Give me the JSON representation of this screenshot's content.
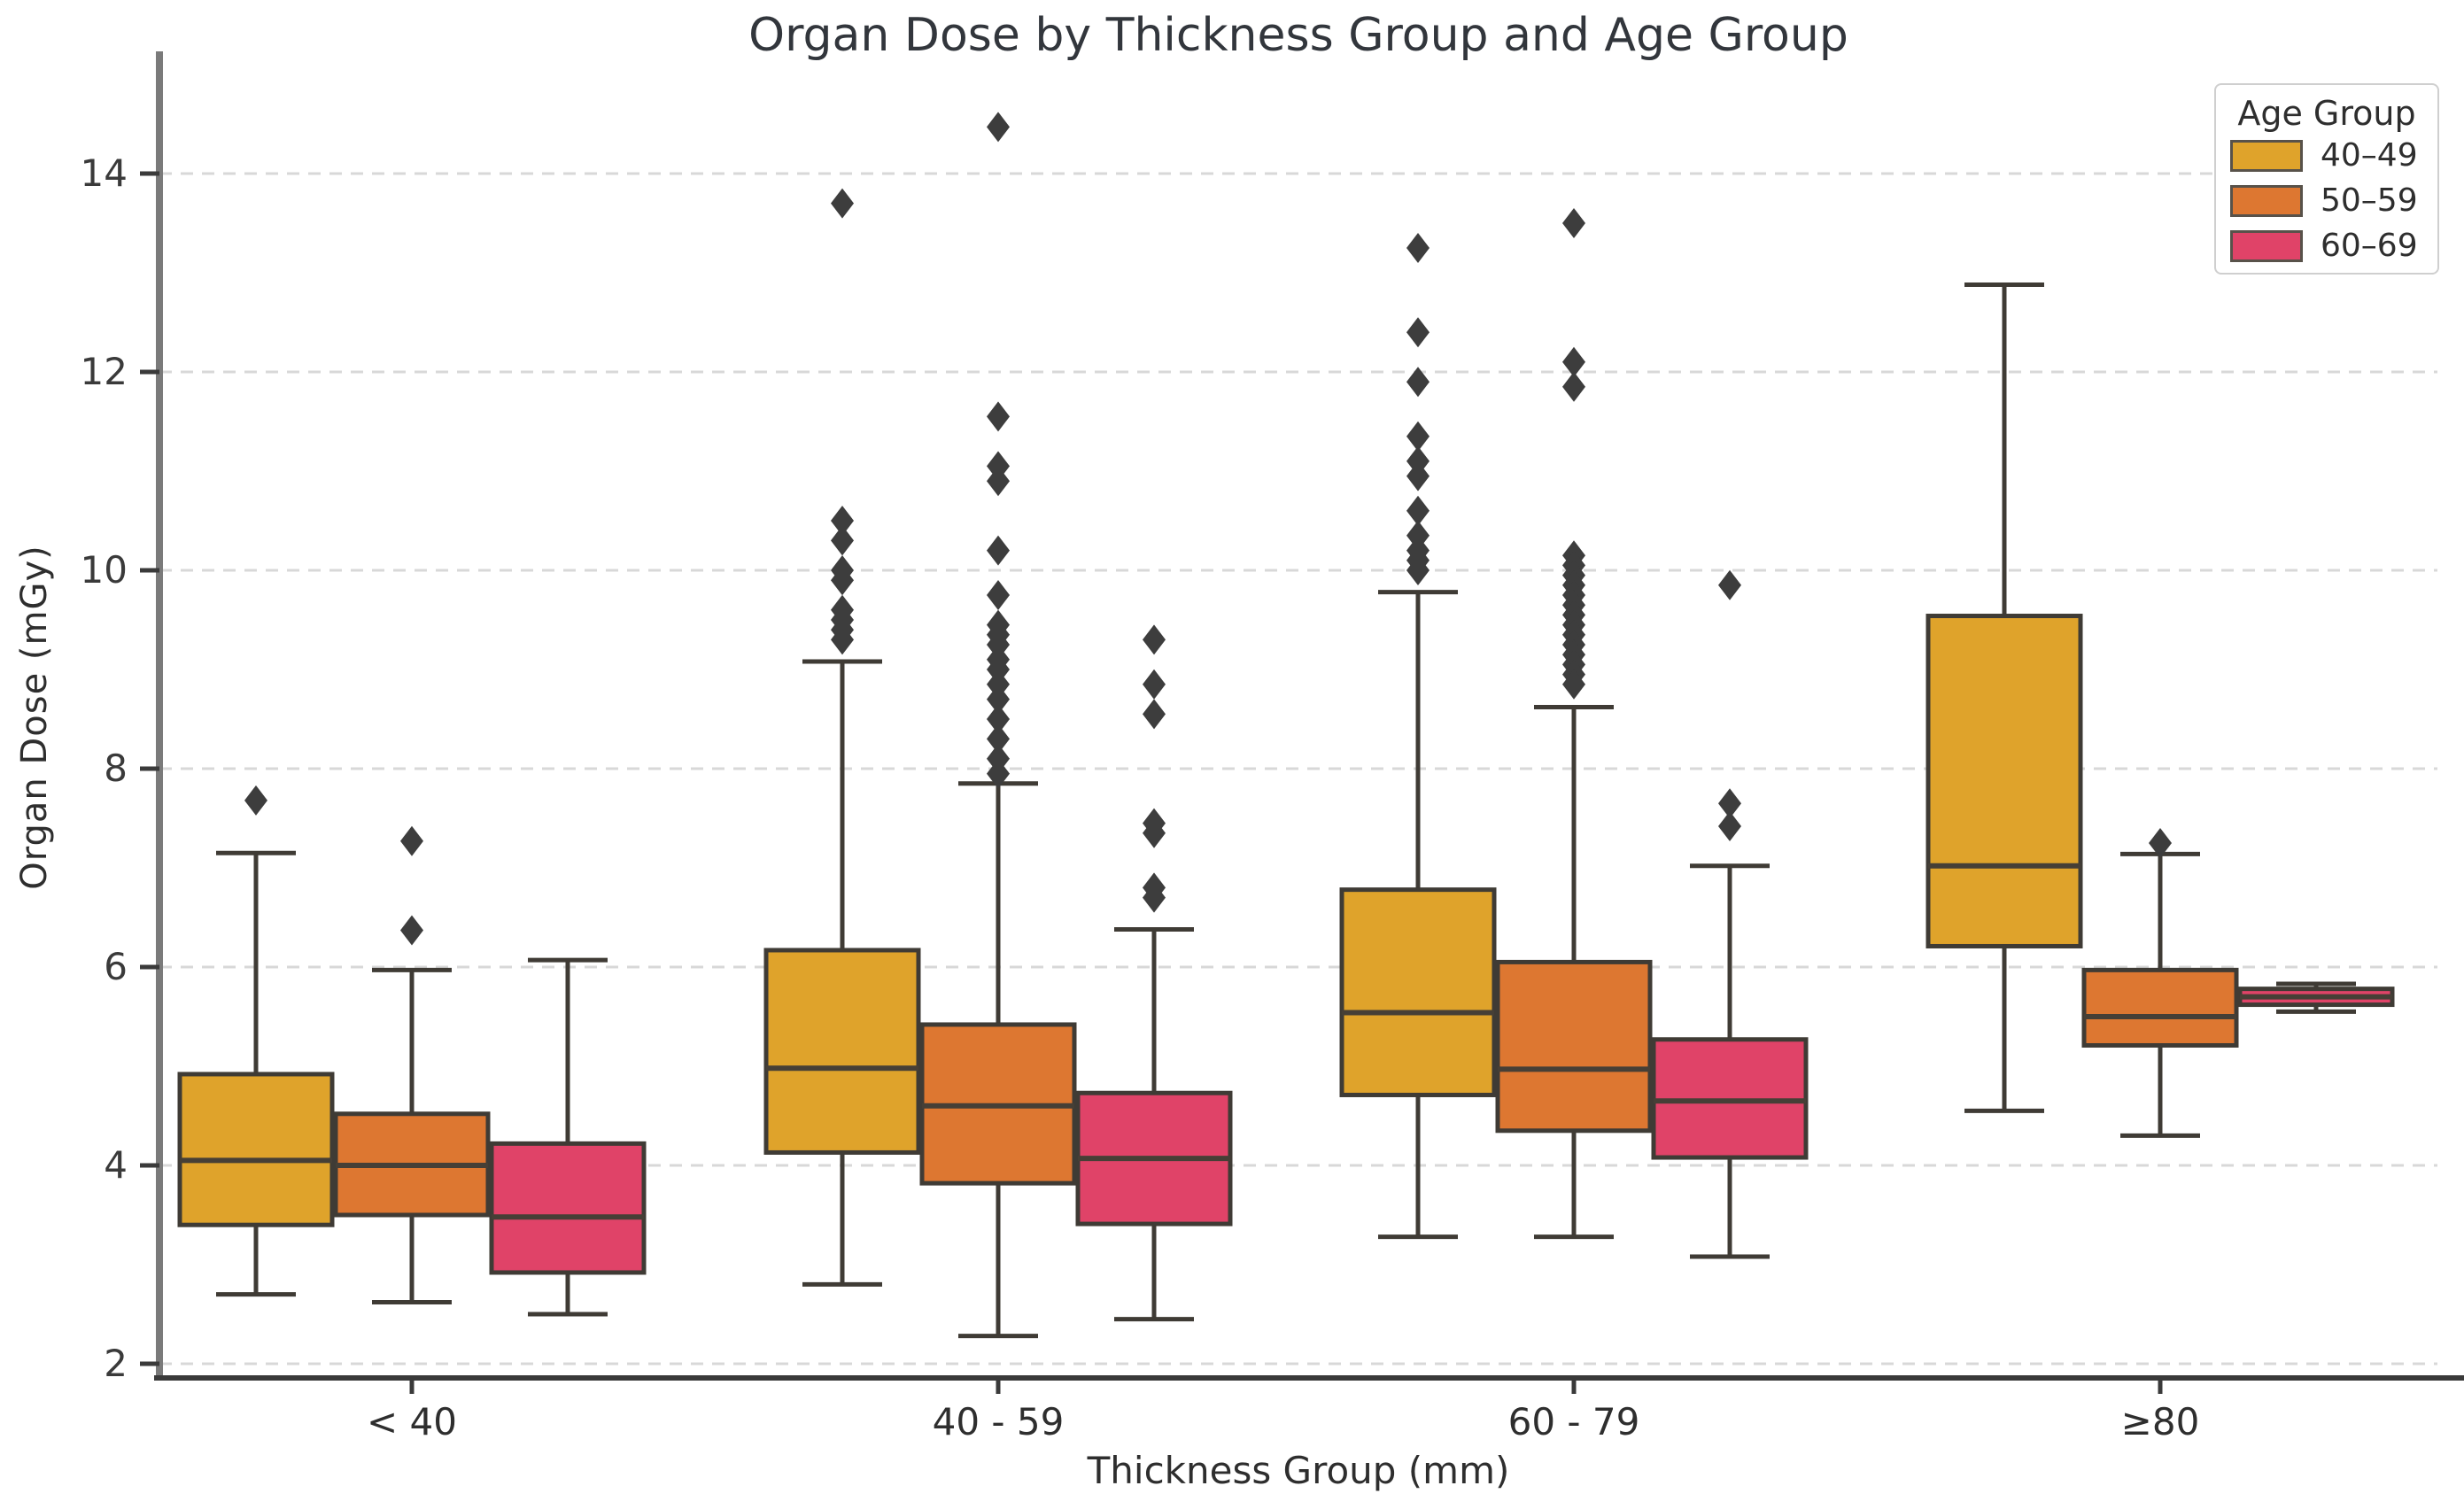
{
  "title": "Organ Dose by Thickness Group and Age Group",
  "legend": {
    "title": "Age Group",
    "entries": [
      {
        "label": "40–49",
        "color": "#DFA32B"
      },
      {
        "label": "50–59",
        "color": "#DD7731"
      },
      {
        "label": "60–69",
        "color": "#E04368"
      }
    ]
  },
  "chart_data": {
    "type": "grouped_boxplot",
    "title": "Organ Dose by Thickness Group and Age Group",
    "xlabel": "Thickness Group (mm)",
    "ylabel": "Organ Dose (mGy)",
    "categories": [
      "< 40",
      "40 - 59",
      "60 - 79",
      "≥80"
    ],
    "y_ticks": [
      2,
      4,
      6,
      8,
      10,
      12,
      14
    ],
    "ylim": [
      1.8,
      15.2
    ],
    "grid": "horizontal-dashed",
    "legend_position": "upper right",
    "outlier_marker": "diamond",
    "series": [
      {
        "name": "40–49",
        "color": "#DFA32B",
        "boxes": [
          {
            "whisker_low": 2.7,
            "q1": 3.4,
            "median": 4.05,
            "q3": 4.92,
            "whisker_high": 7.15,
            "outliers": [
              7.68
            ]
          },
          {
            "whisker_low": 2.8,
            "q1": 4.13,
            "median": 4.98,
            "q3": 6.17,
            "whisker_high": 9.08,
            "outliers": [
              13.7,
              10.5,
              10.3,
              10.0,
              9.9,
              9.6,
              9.5,
              9.4,
              9.3
            ]
          },
          {
            "whisker_low": 3.28,
            "q1": 4.71,
            "median": 5.54,
            "q3": 6.78,
            "whisker_high": 9.78,
            "outliers": [
              13.25,
              12.4,
              11.9,
              11.35,
              11.1,
              10.95,
              10.6,
              10.35,
              10.2,
              10.1,
              10.0
            ]
          },
          {
            "whisker_low": 4.55,
            "q1": 6.21,
            "median": 7.02,
            "q3": 9.54,
            "whisker_high": 12.88,
            "outliers": []
          }
        ]
      },
      {
        "name": "50–59",
        "color": "#DD7731",
        "boxes": [
          {
            "whisker_low": 2.62,
            "q1": 3.5,
            "median": 4.0,
            "q3": 4.52,
            "whisker_high": 5.97,
            "outliers": [
              7.27,
              6.37
            ]
          },
          {
            "whisker_low": 2.28,
            "q1": 3.82,
            "median": 4.6,
            "q3": 5.42,
            "whisker_high": 7.85,
            "outliers": [
              14.47,
              11.55,
              11.05,
              10.9,
              10.2,
              9.75,
              9.45,
              9.35,
              9.25,
              9.1,
              9.0,
              8.85,
              8.7,
              8.5,
              8.3,
              8.1,
              7.95
            ]
          },
          {
            "whisker_low": 3.28,
            "q1": 4.35,
            "median": 4.97,
            "q3": 6.05,
            "whisker_high": 8.62,
            "outliers": [
              13.5,
              12.1,
              11.85,
              10.15,
              10.05,
              9.95,
              9.85,
              9.75,
              9.65,
              9.55,
              9.45,
              9.35,
              9.25,
              9.15,
              9.05,
              8.95,
              8.85
            ]
          },
          {
            "whisker_low": 4.3,
            "q1": 5.21,
            "median": 5.5,
            "q3": 5.97,
            "whisker_high": 7.14,
            "outliers": [
              7.25
            ]
          }
        ]
      },
      {
        "name": "60–69",
        "color": "#E04368",
        "boxes": [
          {
            "whisker_low": 2.5,
            "q1": 2.92,
            "median": 3.48,
            "q3": 4.22,
            "whisker_high": 6.07,
            "outliers": []
          },
          {
            "whisker_low": 2.45,
            "q1": 3.41,
            "median": 4.07,
            "q3": 4.73,
            "whisker_high": 6.38,
            "outliers": [
              9.3,
              8.85,
              8.55,
              7.45,
              7.35,
              6.8,
              6.7
            ]
          },
          {
            "whisker_low": 3.08,
            "q1": 4.08,
            "median": 4.65,
            "q3": 5.27,
            "whisker_high": 7.02,
            "outliers": [
              9.85,
              7.65,
              7.42
            ]
          },
          {
            "whisker_low": 5.55,
            "q1": 5.62,
            "median": 5.7,
            "q3": 5.78,
            "whisker_high": 5.83,
            "outliers": []
          }
        ]
      }
    ]
  }
}
